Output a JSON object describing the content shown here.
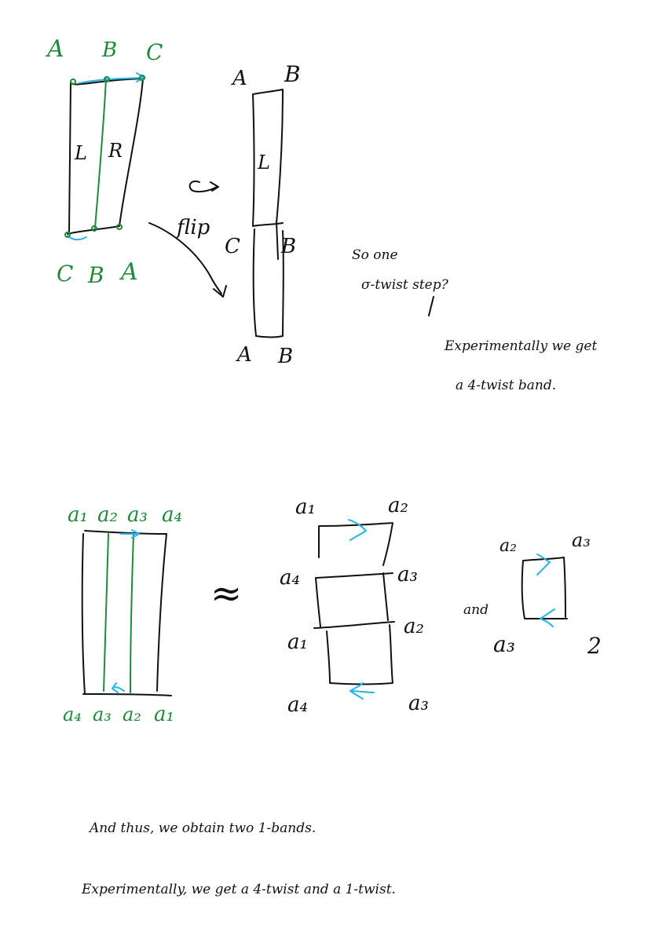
{
  "colors": {
    "ink": "#111111",
    "green": "#1e8a3a",
    "cyan": "#29b3e6",
    "background": "#ffffff"
  },
  "fig1": {
    "top_labels": [
      "A",
      "B",
      "C"
    ],
    "bottom_labels": [
      "C",
      "B",
      "A"
    ],
    "left_half": "L",
    "right_half": "R",
    "flip_label": "flip"
  },
  "fig2": {
    "top_a": "A",
    "top_b": "B",
    "mid_c": "C",
    "mid_b": "B",
    "bot_a": "A",
    "bot_b": "B",
    "inner_l": "L"
  },
  "notes": {
    "q1": "So one",
    "q2": "σ-twist step?",
    "e1": "Experimentally we get",
    "e2": "a 4-twist band."
  },
  "fig3": {
    "top_labels": [
      "a₁",
      "a₂",
      "a₃",
      "a₄"
    ],
    "bottom_labels": [
      "a₄",
      "a₃",
      "a₂",
      "a₁"
    ],
    "approx": "≈"
  },
  "fig4": {
    "a1_top": "a₁",
    "a2_top": "a₂",
    "a4": "a₄",
    "a3_mid": "a₃",
    "a1_mid": "a₁",
    "a2_mid": "a₂",
    "a4_bot": "a₄",
    "a3_bot": "a₃"
  },
  "fig5": {
    "a2": "a₂",
    "a3_top": "a₃",
    "and_label": "and",
    "a3_bot": "a₃",
    "two": "2"
  },
  "footer": {
    "line1": "And thus, we obtain two 1-bands.",
    "line2": "Experimentally, we get a 4-twist and a 1-twist."
  }
}
